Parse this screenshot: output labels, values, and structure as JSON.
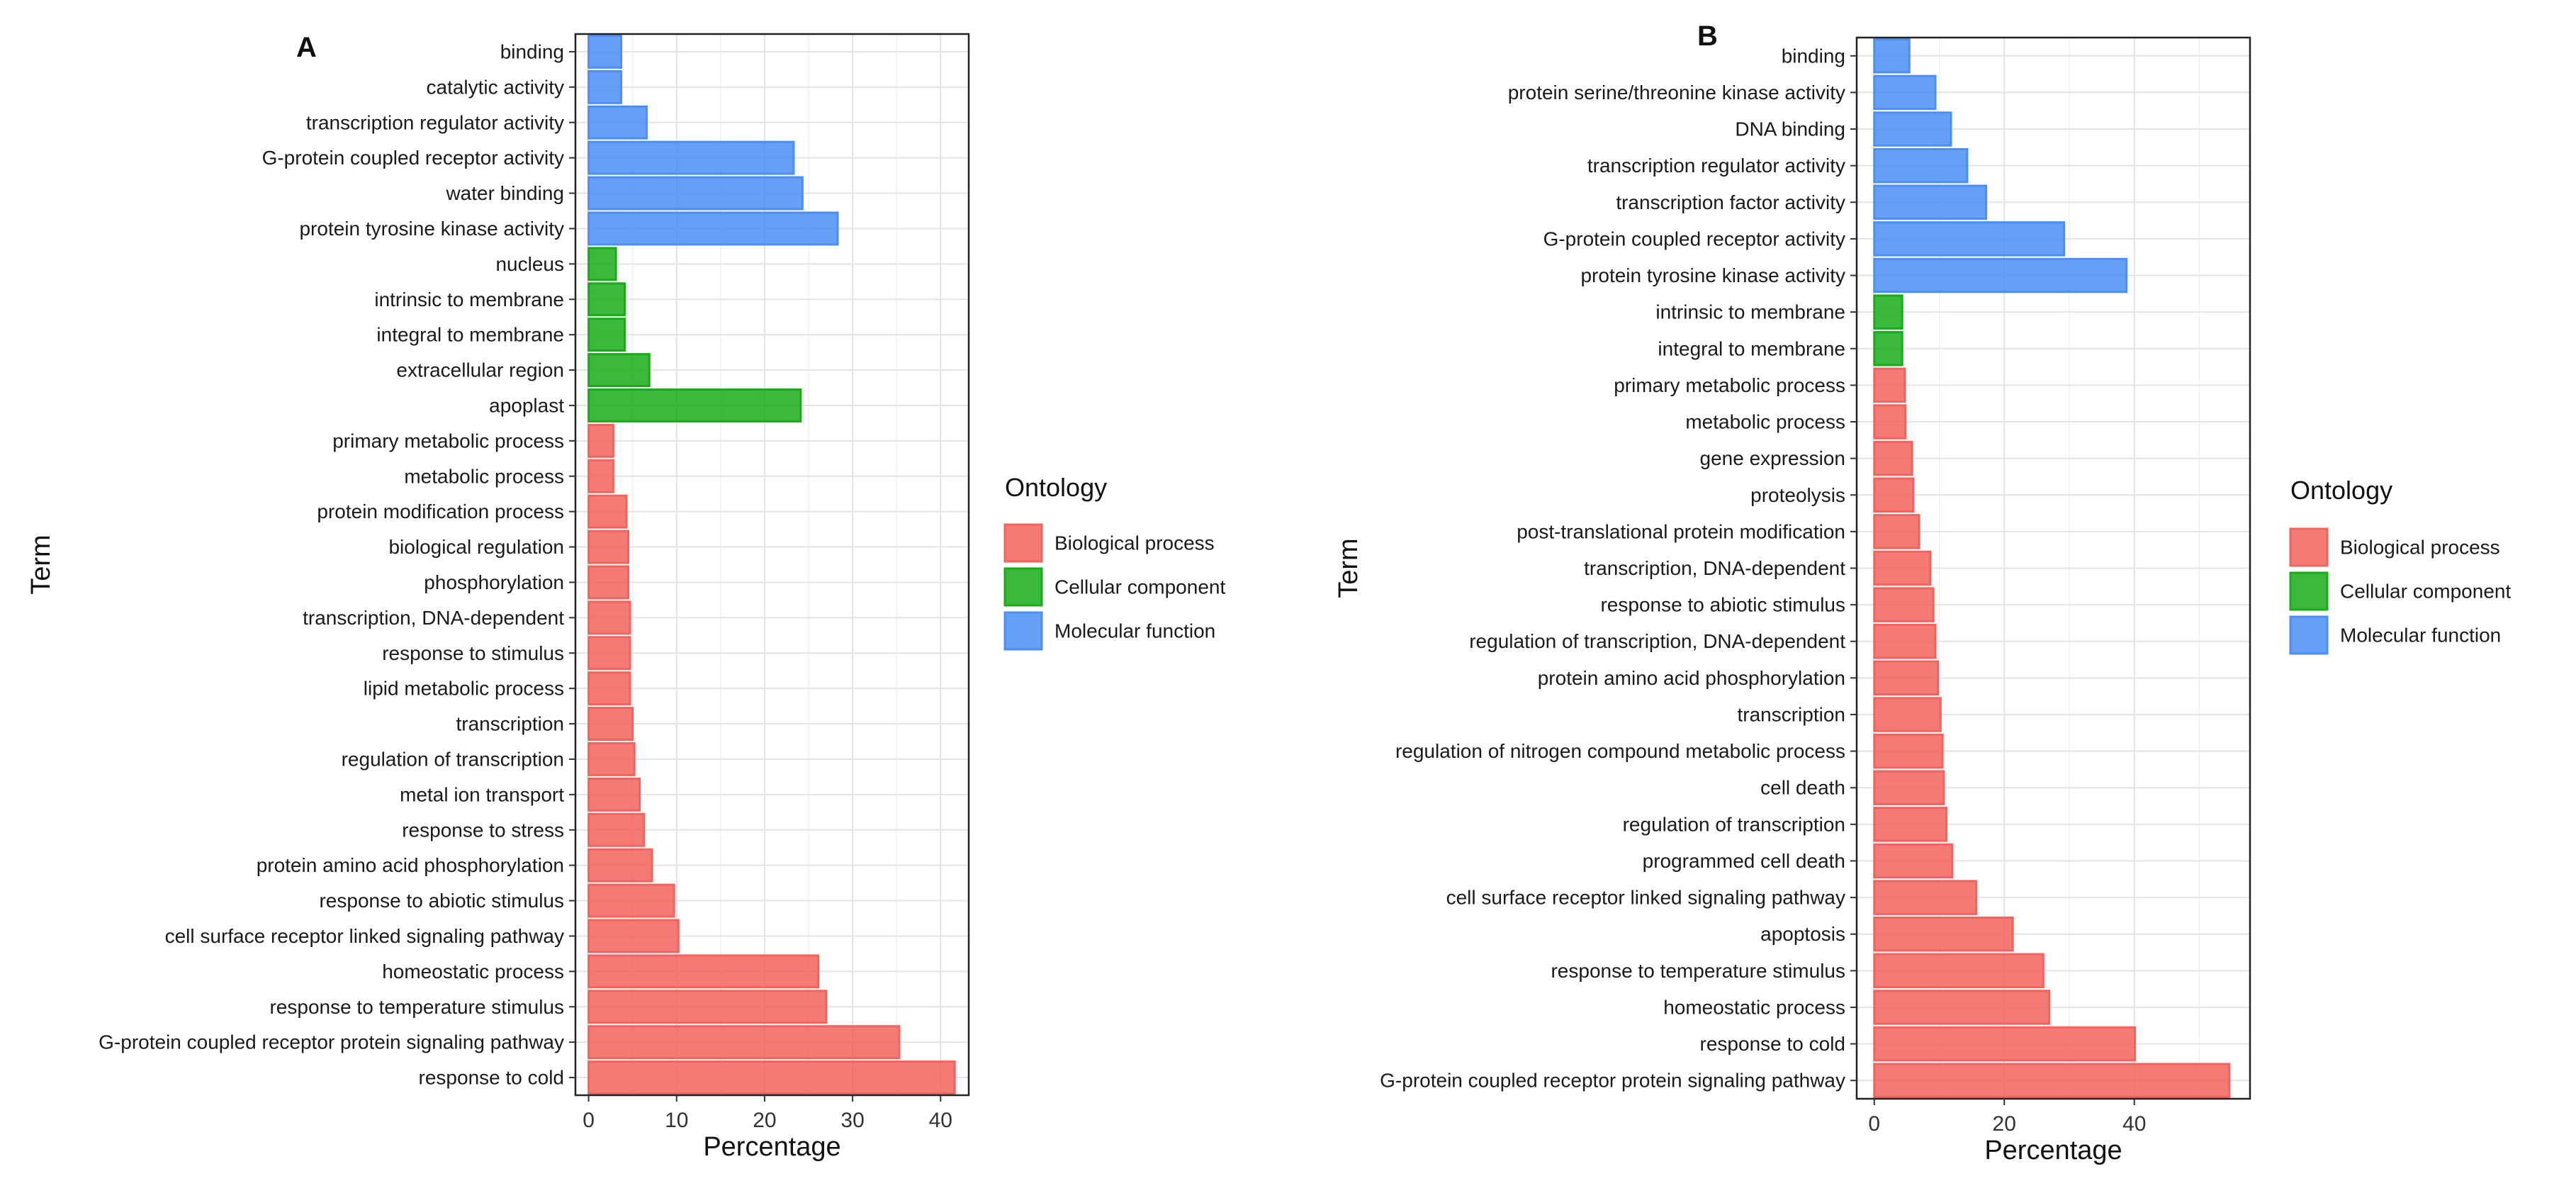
{
  "chart_data": [
    {
      "panel_label": "A",
      "type": "bar",
      "orientation": "horizontal",
      "xlabel": "Percentage",
      "ylabel": "Term",
      "xlim": [
        -1.5,
        43.2
      ],
      "xticks": [
        0,
        10,
        20,
        30,
        40
      ],
      "grid": true,
      "legend_title": "Ontology",
      "legend_placement": "right",
      "legend": [
        {
          "name": "Biological process",
          "color": "#f2635e"
        },
        {
          "name": "Cellular component",
          "color": "#1aab1a"
        },
        {
          "name": "Molecular function",
          "color": "#4b8ef5"
        }
      ],
      "categories": [
        "binding",
        "catalytic activity",
        "transcription regulator activity",
        "G-protein coupled receptor activity",
        "water binding",
        "protein tyrosine kinase activity",
        "nucleus",
        "intrinsic to membrane",
        "integral to membrane",
        "extracellular region",
        "apoplast",
        "primary metabolic process",
        "metabolic process",
        "protein modification process",
        "biological regulation",
        "phosphorylation",
        "transcription, DNA-dependent",
        "response to stimulus",
        "lipid metabolic process",
        "transcription",
        "regulation of transcription",
        "metal ion transport",
        "response to stress",
        "protein amino acid phosphorylation",
        "response to abiotic stimulus",
        "cell surface receptor linked signaling pathway",
        "homeostatic process",
        "response to temperature stimulus",
        "G-protein coupled receptor protein signaling pathway",
        "response to cold"
      ],
      "values": [
        3.7,
        3.7,
        6.6,
        23.3,
        24.3,
        28.3,
        3.1,
        4.1,
        4.1,
        6.9,
        24.1,
        2.8,
        2.8,
        4.3,
        4.5,
        4.5,
        4.7,
        4.7,
        4.7,
        5.0,
        5.2,
        5.8,
        6.3,
        7.2,
        9.7,
        10.2,
        26.1,
        27.0,
        35.3,
        41.6
      ],
      "ontology": [
        "Molecular function",
        "Molecular function",
        "Molecular function",
        "Molecular function",
        "Molecular function",
        "Molecular function",
        "Cellular component",
        "Cellular component",
        "Cellular component",
        "Cellular component",
        "Cellular component",
        "Biological process",
        "Biological process",
        "Biological process",
        "Biological process",
        "Biological process",
        "Biological process",
        "Biological process",
        "Biological process",
        "Biological process",
        "Biological process",
        "Biological process",
        "Biological process",
        "Biological process",
        "Biological process",
        "Biological process",
        "Biological process",
        "Biological process",
        "Biological process",
        "Biological process"
      ]
    },
    {
      "panel_label": "B",
      "type": "bar",
      "orientation": "horizontal",
      "xlabel": "Percentage",
      "ylabel": "Term",
      "xlim": [
        -2.7,
        57.8
      ],
      "xticks": [
        0,
        20,
        40
      ],
      "grid": true,
      "legend_title": "Ontology",
      "legend_placement": "right",
      "legend": [
        {
          "name": "Biological process",
          "color": "#f2635e"
        },
        {
          "name": "Cellular component",
          "color": "#1aab1a"
        },
        {
          "name": "Molecular function",
          "color": "#4b8ef5"
        }
      ],
      "categories": [
        "binding",
        "protein serine/threonine kinase activity",
        "DNA binding",
        "transcription regulator activity",
        "transcription factor activity",
        "G-protein coupled receptor activity",
        "protein tyrosine kinase activity",
        "intrinsic to membrane",
        "integral to membrane",
        "primary metabolic process",
        "metabolic process",
        "gene expression",
        "proteolysis",
        "post-translational protein modification",
        "transcription, DNA-dependent",
        "response to abiotic stimulus",
        "regulation of transcription, DNA-dependent",
        "protein amino acid phosphorylation",
        "transcription",
        "regulation of nitrogen compound metabolic process",
        "cell death",
        "regulation of transcription",
        "programmed cell death",
        "cell surface receptor linked signaling pathway",
        "apoptosis",
        "response to temperature stimulus",
        "homeostatic process",
        "response to cold",
        "G-protein coupled receptor protein signaling pathway"
      ],
      "values": [
        5.4,
        9.4,
        11.8,
        14.3,
        17.2,
        29.2,
        38.8,
        4.3,
        4.3,
        4.7,
        4.8,
        5.8,
        6.0,
        6.9,
        8.6,
        9.1,
        9.4,
        9.8,
        10.2,
        10.5,
        10.7,
        11.1,
        12.0,
        15.7,
        21.3,
        26.0,
        26.9,
        40.1,
        54.6
      ],
      "ontology": [
        "Molecular function",
        "Molecular function",
        "Molecular function",
        "Molecular function",
        "Molecular function",
        "Molecular function",
        "Molecular function",
        "Cellular component",
        "Cellular component",
        "Biological process",
        "Biological process",
        "Biological process",
        "Biological process",
        "Biological process",
        "Biological process",
        "Biological process",
        "Biological process",
        "Biological process",
        "Biological process",
        "Biological process",
        "Biological process",
        "Biological process",
        "Biological process",
        "Biological process",
        "Biological process",
        "Biological process",
        "Biological process",
        "Biological process",
        "Biological process"
      ]
    }
  ]
}
